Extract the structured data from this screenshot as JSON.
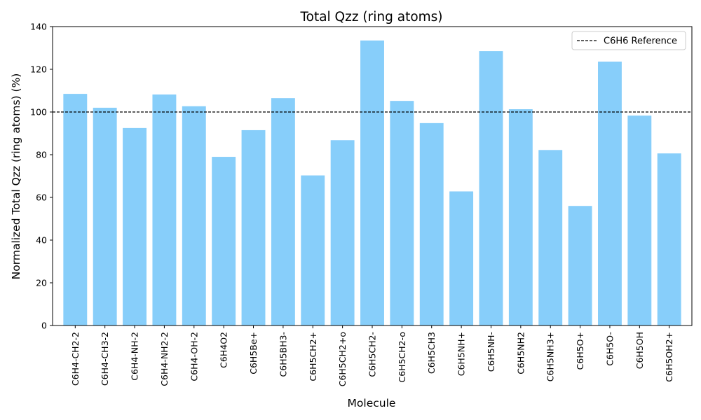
{
  "chart_data": {
    "type": "bar",
    "title": "Total Qzz (ring atoms)",
    "xlabel": "Molecule",
    "ylabel": "Normalized Total Qzz (ring atoms) (%)",
    "ylim": [
      0,
      140
    ],
    "yticks": [
      0,
      20,
      40,
      60,
      80,
      100,
      120,
      140
    ],
    "grid": false,
    "categories": [
      "C6H4-CH2-2",
      "C6H4-CH3-2",
      "C6H4-NH-2",
      "C6H4-NH2-2",
      "C6H4-OH-2",
      "C6H4O2",
      "C6H5Be+",
      "C6H5BH3-",
      "C6H5CH2+",
      "C6H5CH2+o",
      "C6H5CH2-",
      "C6H5CH2-o",
      "C6H5CH3",
      "C6H5NH+",
      "C6H5NH-",
      "C6H5NH2",
      "C6H5NH3+",
      "C6H5O+",
      "C6H5O-",
      "C6H5OH",
      "C6H5OH2+"
    ],
    "values": [
      108.5,
      102.0,
      92.5,
      108.2,
      102.7,
      79.0,
      91.5,
      106.5,
      70.3,
      86.8,
      133.5,
      105.2,
      94.8,
      62.8,
      128.5,
      101.3,
      82.2,
      56.0,
      123.6,
      98.3,
      80.6
    ],
    "bar_color": "#87CEFA",
    "reference": {
      "label": "C6H6 Reference",
      "value": 100,
      "color": "#000000",
      "style": "dashed"
    },
    "legend_position": "top-right"
  }
}
